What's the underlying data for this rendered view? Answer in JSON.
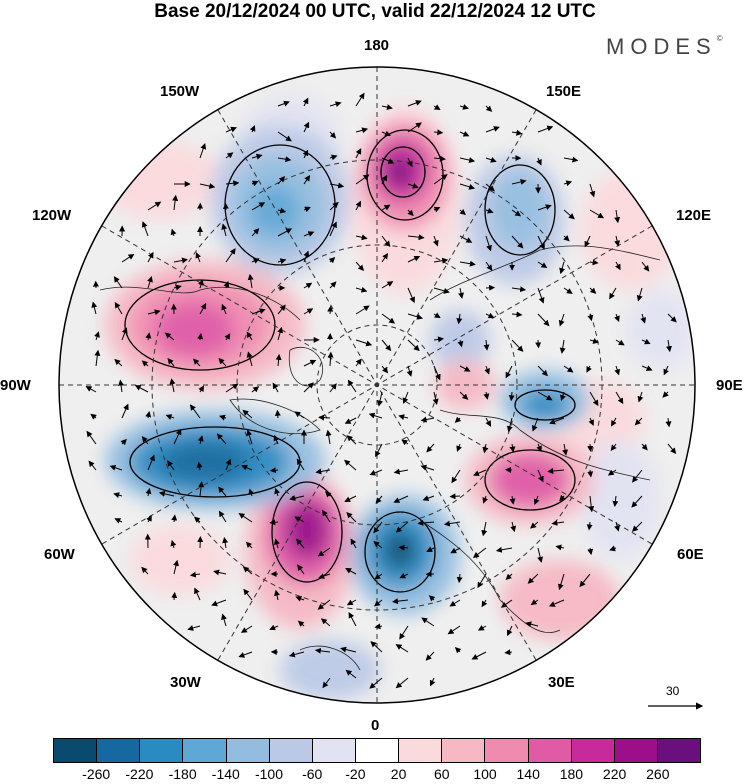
{
  "title": "Base 20/12/2024 00 UTC, valid 22/12/2024 12 UTC",
  "brand": "MODES",
  "brand_mark": "©",
  "longitude_labels": {
    "lon_180": "180",
    "lon_150w": "150W",
    "lon_150e": "150E",
    "lon_120w": "120W",
    "lon_120e": "120E",
    "lon_90w": "90W",
    "lon_90e": "90E",
    "lon_60w": "60W",
    "lon_60e": "60E",
    "lon_30w": "30W",
    "lon_30e": "30E",
    "lon_0": "0"
  },
  "reference_vector": "30",
  "colorbar": {
    "colors": [
      "#0a4a6e",
      "#1569a0",
      "#2a8bc2",
      "#5fa7d6",
      "#93bde0",
      "#bcc9e6",
      "#e2e3f2",
      "#ffffff",
      "#fbdadd",
      "#f6b8c3",
      "#f08bb0",
      "#e05aa6",
      "#c8299b",
      "#9c0e8a",
      "#6a0f7d"
    ],
    "ticks": [
      "-260",
      "-220",
      "-180",
      "-140",
      "-100",
      "-60",
      "-20",
      "20",
      "60",
      "100",
      "140",
      "180",
      "220",
      "260"
    ]
  },
  "anomalies": [
    {
      "color": "#9c0e8a",
      "value": 260
    },
    {
      "color": "#c8299b",
      "value": 200
    },
    {
      "color": "#1569a0",
      "value": -220
    },
    {
      "color": "#2a8bc2",
      "value": -180
    },
    {
      "color": "#e05aa6",
      "value": 160
    },
    {
      "color": "#5fa7d6",
      "value": -140
    }
  ]
}
